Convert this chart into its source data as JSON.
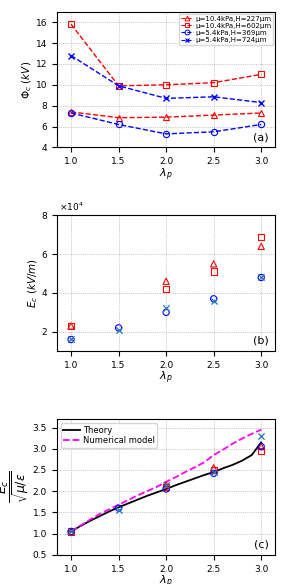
{
  "lambda_p": [
    1.0,
    1.5,
    2.0,
    2.5,
    3.0
  ],
  "phi_series": {
    "red_triangle": [
      7.4,
      6.85,
      6.9,
      7.1,
      7.3
    ],
    "red_square": [
      15.8,
      9.9,
      10.0,
      10.2,
      11.0
    ],
    "blue_circle": [
      7.3,
      6.2,
      5.3,
      5.5,
      6.2
    ],
    "blue_cross": [
      12.8,
      9.9,
      8.7,
      8.85,
      8.3
    ]
  },
  "Ec_series": {
    "red_triangle": [
      23000.0,
      null,
      46000.0,
      55000.0,
      64000.0
    ],
    "red_square": [
      23000.0,
      null,
      42000.0,
      51000.0,
      69000.0
    ],
    "blue_circle": [
      16000.0,
      22000.0,
      30000.0,
      37000.0,
      48000.0
    ],
    "blue_cross": [
      16000.0,
      21000.0,
      32000.0,
      36000.0,
      48000.0
    ]
  },
  "Ec_norm_series": {
    "red_triangle": [
      1.05,
      null,
      2.15,
      2.55,
      3.05
    ],
    "red_square": [
      1.05,
      null,
      2.1,
      2.5,
      2.95
    ],
    "blue_circle": [
      1.05,
      1.6,
      2.05,
      2.42,
      3.05
    ],
    "blue_cross": [
      1.05,
      1.55,
      2.15,
      2.45,
      3.3
    ]
  },
  "theory_x": [
    1.0,
    1.1,
    1.2,
    1.3,
    1.4,
    1.5,
    1.6,
    1.7,
    1.8,
    1.9,
    2.0,
    2.1,
    2.2,
    2.3,
    2.4,
    2.5,
    2.6,
    2.7,
    2.8,
    2.9,
    3.0
  ],
  "theory_y": [
    1.05,
    1.18,
    1.3,
    1.41,
    1.52,
    1.62,
    1.71,
    1.8,
    1.89,
    1.97,
    2.05,
    2.14,
    2.22,
    2.3,
    2.38,
    2.45,
    2.54,
    2.62,
    2.72,
    2.85,
    3.15
  ],
  "numerical_x": [
    1.0,
    1.1,
    1.2,
    1.3,
    1.4,
    1.5,
    1.6,
    1.7,
    1.8,
    1.9,
    2.0,
    2.1,
    2.2,
    2.3,
    2.4,
    2.5,
    2.6,
    2.7,
    2.8,
    2.9,
    3.0
  ],
  "numerical_y": [
    1.05,
    1.19,
    1.33,
    1.46,
    1.57,
    1.68,
    1.79,
    1.9,
    2.0,
    2.1,
    2.22,
    2.33,
    2.45,
    2.56,
    2.68,
    2.85,
    2.98,
    3.12,
    3.24,
    3.35,
    3.45
  ],
  "red_color": "#FF0000",
  "blue_color": "#0000FF",
  "magenta_color": "#FF00FF",
  "black_color": "#000000",
  "legend_labels": [
    "μ=10.4kPa,H=227μm",
    "μ=10.4kPa,H=602μm",
    "μ=5.4kPa,H=369μm",
    "μ=5.4kPa,H=724μm"
  ]
}
